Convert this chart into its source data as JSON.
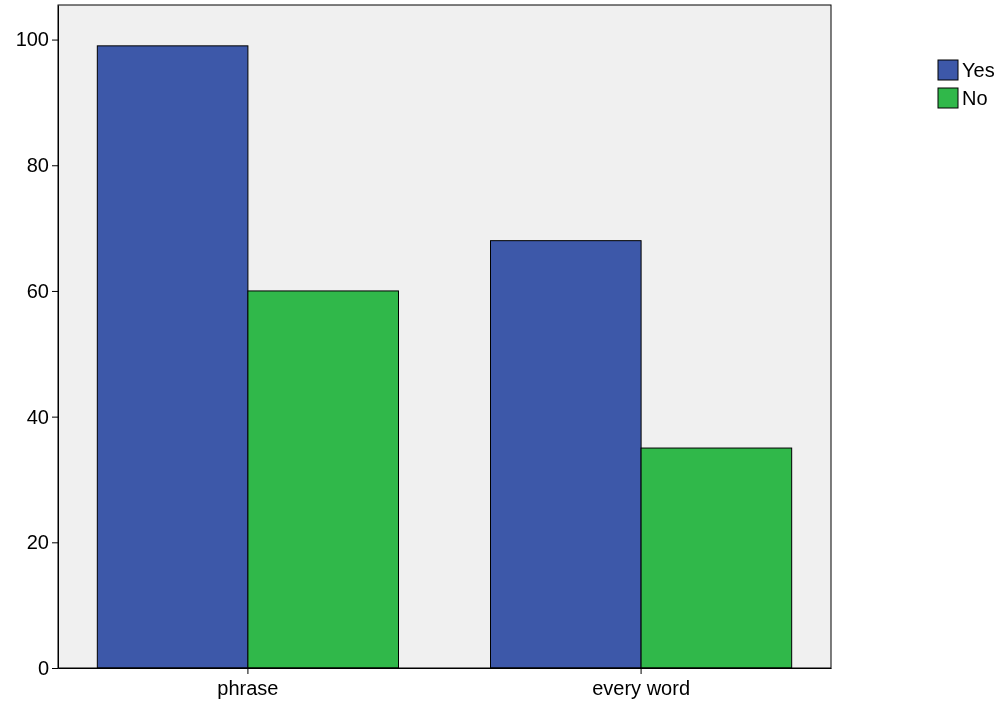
{
  "chart_data": {
    "type": "bar",
    "categories": [
      "phrase",
      "every word"
    ],
    "series": [
      {
        "name": "Yes",
        "color": "#3d58a9",
        "values": [
          99,
          68
        ]
      },
      {
        "name": "No",
        "color": "#30b84a",
        "values": [
          60,
          35
        ]
      }
    ],
    "ylim": [
      0,
      105.5
    ],
    "yticks": [
      0,
      20,
      40,
      60,
      80,
      100
    ],
    "grid": false,
    "legend": "top right"
  }
}
